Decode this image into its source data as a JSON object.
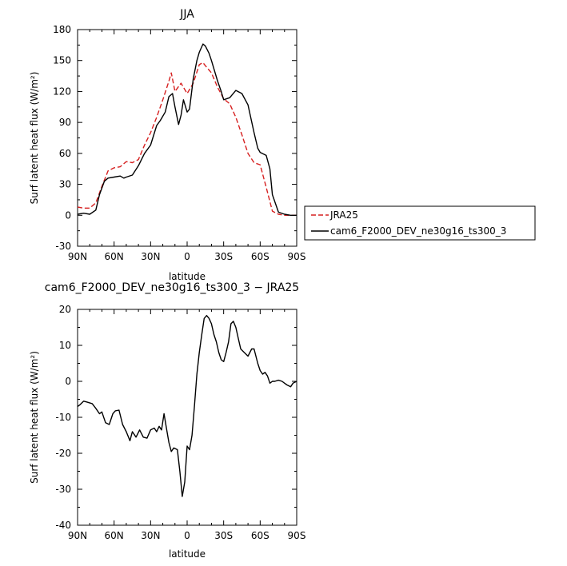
{
  "chart_data": [
    {
      "type": "line",
      "title": "JJA",
      "xlabel": "latitude",
      "ylabel": "Surf latent heat flux (W/m²)",
      "xlim": [
        -90,
        90
      ],
      "ylim": [
        -30,
        180
      ],
      "xticks": [
        {
          "value": -90,
          "label": "90N"
        },
        {
          "value": -60,
          "label": "60N"
        },
        {
          "value": -30,
          "label": "30N"
        },
        {
          "value": 0,
          "label": "0"
        },
        {
          "value": 30,
          "label": "30S"
        },
        {
          "value": 60,
          "label": "60S"
        },
        {
          "value": 90,
          "label": "90S"
        }
      ],
      "yticks": [
        -30,
        0,
        30,
        60,
        90,
        120,
        150,
        180
      ],
      "legend": "outside-right",
      "series": [
        {
          "name": "JRA25",
          "color": "#d62020",
          "dash": "dashed",
          "x": [
            -90,
            -85,
            -80,
            -75,
            -70,
            -65,
            -60,
            -55,
            -50,
            -45,
            -40,
            -35,
            -30,
            -25,
            -20,
            -15,
            -13,
            -10,
            -5,
            0,
            5,
            10,
            13,
            15,
            20,
            25,
            30,
            35,
            40,
            45,
            50,
            55,
            60,
            65,
            70,
            75,
            80,
            85,
            90
          ],
          "y": [
            8,
            7,
            7,
            12,
            28,
            43,
            46,
            47,
            52,
            51,
            54,
            68,
            80,
            95,
            112,
            130,
            138,
            120,
            128,
            118,
            128,
            146,
            148,
            145,
            138,
            124,
            113,
            108,
            95,
            78,
            60,
            51,
            49,
            27,
            4,
            1,
            0,
            0,
            0
          ]
        },
        {
          "name": "cam6_F2000_DEV_ne30g16_ts300_3",
          "color": "#000000",
          "dash": "solid",
          "x": [
            -90,
            -85,
            -80,
            -75,
            -72,
            -68,
            -65,
            -60,
            -55,
            -52,
            -50,
            -45,
            -40,
            -35,
            -30,
            -25,
            -22,
            -18,
            -15,
            -12,
            -10,
            -7,
            -5,
            -3,
            0,
            2,
            5,
            8,
            10,
            13,
            15,
            18,
            20,
            25,
            28,
            30,
            35,
            40,
            45,
            50,
            55,
            58,
            60,
            65,
            68,
            70,
            75,
            80,
            85,
            90
          ],
          "y": [
            1,
            2,
            1,
            5,
            20,
            33,
            36,
            37,
            38,
            36,
            37,
            39,
            48,
            60,
            68,
            87,
            92,
            100,
            115,
            118,
            105,
            88,
            97,
            112,
            100,
            103,
            132,
            150,
            158,
            166,
            164,
            157,
            150,
            130,
            120,
            112,
            114,
            121,
            118,
            107,
            80,
            65,
            61,
            58,
            45,
            20,
            3,
            1,
            0,
            0
          ]
        }
      ]
    },
    {
      "type": "line",
      "title": "cam6_F2000_DEV_ne30g16_ts300_3 − JRA25",
      "xlabel": "latitude",
      "ylabel": "Surf latent heat flux (W/m²)",
      "xlim": [
        -90,
        90
      ],
      "ylim": [
        -40,
        20
      ],
      "xticks": [
        {
          "value": -90,
          "label": "90N"
        },
        {
          "value": -60,
          "label": "60N"
        },
        {
          "value": -30,
          "label": "30N"
        },
        {
          "value": 0,
          "label": "0"
        },
        {
          "value": 30,
          "label": "30S"
        },
        {
          "value": 60,
          "label": "60S"
        },
        {
          "value": 90,
          "label": "90S"
        }
      ],
      "yticks": [
        -40,
        -30,
        -20,
        -10,
        0,
        10,
        20
      ],
      "series": [
        {
          "color": "#000000",
          "dash": "solid",
          "x": [
            -90,
            -88,
            -85,
            -82,
            -78,
            -75,
            -72,
            -70,
            -67,
            -64,
            -61,
            -59,
            -56,
            -53,
            -50,
            -47,
            -45,
            -42,
            -39,
            -36,
            -33,
            -30,
            -27,
            -25,
            -23,
            -21,
            -19,
            -17,
            -15,
            -13,
            -11,
            -8,
            -6,
            -4,
            -2,
            0,
            2,
            4,
            6,
            8,
            10,
            12,
            14,
            16,
            18,
            20,
            22,
            24,
            26,
            28,
            30,
            32,
            34,
            36,
            38,
            40,
            42,
            44,
            47,
            50,
            53,
            55,
            58,
            60,
            62,
            64,
            66,
            68,
            70,
            72,
            75,
            78,
            80,
            82,
            85,
            87,
            90
          ],
          "y": [
            -7,
            -6.5,
            -5.5,
            -5.8,
            -6.2,
            -7.5,
            -9,
            -8.5,
            -11.5,
            -12,
            -9,
            -8.2,
            -8,
            -12,
            -14,
            -16.5,
            -14,
            -15.5,
            -13.5,
            -15.5,
            -15.8,
            -13.5,
            -13,
            -14,
            -12.5,
            -13.5,
            -9,
            -13,
            -17,
            -19.5,
            -18.5,
            -19,
            -25,
            -32,
            -28,
            -18,
            -19,
            -15,
            -7,
            2,
            8,
            13,
            17.5,
            18.3,
            17.5,
            16,
            13,
            11,
            8,
            6,
            5.5,
            8,
            11,
            16,
            16.7,
            15,
            12,
            9,
            8,
            7,
            9,
            9,
            5,
            3,
            2,
            2.5,
            1.5,
            -0.5,
            0,
            0,
            0.3,
            0,
            -0.5,
            -1,
            -1.5,
            -0.5,
            0
          ]
        }
      ]
    }
  ]
}
